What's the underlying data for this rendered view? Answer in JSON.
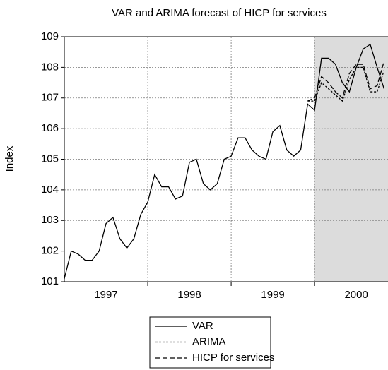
{
  "chart_data": {
    "type": "line",
    "title": "VAR and ARIMA forecast of HICP for services",
    "y_label": "Index",
    "x": [
      1997,
      1997.083,
      1997.167,
      1997.25,
      1997.333,
      1997.417,
      1997.5,
      1997.583,
      1997.667,
      1997.75,
      1997.833,
      1997.917,
      1998,
      1998.083,
      1998.167,
      1998.25,
      1998.333,
      1998.417,
      1998.5,
      1998.583,
      1998.667,
      1998.75,
      1998.833,
      1998.917,
      1999,
      1999.083,
      1999.167,
      1999.25,
      1999.333,
      1999.417,
      1999.5,
      1999.583,
      1999.667,
      1999.75,
      1999.833,
      1999.917,
      2000,
      2000.083,
      2000.167,
      2000.25,
      2000.333,
      2000.417,
      2000.5,
      2000.583,
      2000.667,
      2000.75,
      2000.833
    ],
    "series": [
      {
        "name": "VAR",
        "color": "#000000",
        "dash": "none",
        "values": [
          101.1,
          102.0,
          101.9,
          101.7,
          101.7,
          102.0,
          102.9,
          103.1,
          102.4,
          102.1,
          102.4,
          103.2,
          103.6,
          104.5,
          104.1,
          104.1,
          103.7,
          103.8,
          104.9,
          105.0,
          104.2,
          104.0,
          104.2,
          105.0,
          105.1,
          105.7,
          105.7,
          105.3,
          105.1,
          105.0,
          105.9,
          106.1,
          105.3,
          105.1,
          105.3,
          106.8,
          106.6,
          108.3,
          108.3,
          108.1,
          107.5,
          107.2,
          108.0,
          108.6,
          108.75,
          108.0,
          107.3
        ]
      },
      {
        "name": "ARIMA",
        "color": "#000000",
        "dash": "3,2",
        "values": [
          null,
          null,
          null,
          null,
          null,
          null,
          null,
          null,
          null,
          null,
          null,
          null,
          null,
          null,
          null,
          null,
          null,
          null,
          null,
          null,
          null,
          null,
          null,
          null,
          null,
          null,
          null,
          null,
          null,
          null,
          null,
          null,
          null,
          null,
          null,
          106.9,
          106.9,
          107.5,
          107.3,
          107.1,
          106.9,
          107.6,
          108.0,
          108.0,
          107.2,
          107.2,
          107.9
        ]
      },
      {
        "name": "HICP for services",
        "color": "#000000",
        "dash": "7,3",
        "values": [
          null,
          null,
          null,
          null,
          null,
          null,
          null,
          null,
          null,
          null,
          null,
          null,
          null,
          null,
          null,
          null,
          null,
          null,
          null,
          null,
          null,
          null,
          null,
          null,
          null,
          null,
          null,
          null,
          null,
          null,
          null,
          null,
          null,
          null,
          null,
          106.9,
          107.0,
          107.7,
          107.5,
          107.2,
          107.0,
          107.8,
          108.1,
          108.1,
          107.3,
          107.4,
          108.2
        ]
      }
    ],
    "xlim": [
      1997,
      2000.88
    ],
    "xticks": [
      {
        "value": 1997.5,
        "label": "1997"
      },
      {
        "value": 1998.5,
        "label": "1998"
      },
      {
        "value": 1999.5,
        "label": "1999"
      },
      {
        "value": 2000.5,
        "label": "2000"
      }
    ],
    "xgrid": [
      1998,
      1999,
      2000
    ],
    "ylim": [
      101,
      109
    ],
    "yticks": [
      101,
      102,
      103,
      104,
      105,
      106,
      107,
      108,
      109
    ],
    "shade_from": 2000,
    "shade_color": "#dcdcdc",
    "grid": true,
    "legend": "bottom"
  }
}
